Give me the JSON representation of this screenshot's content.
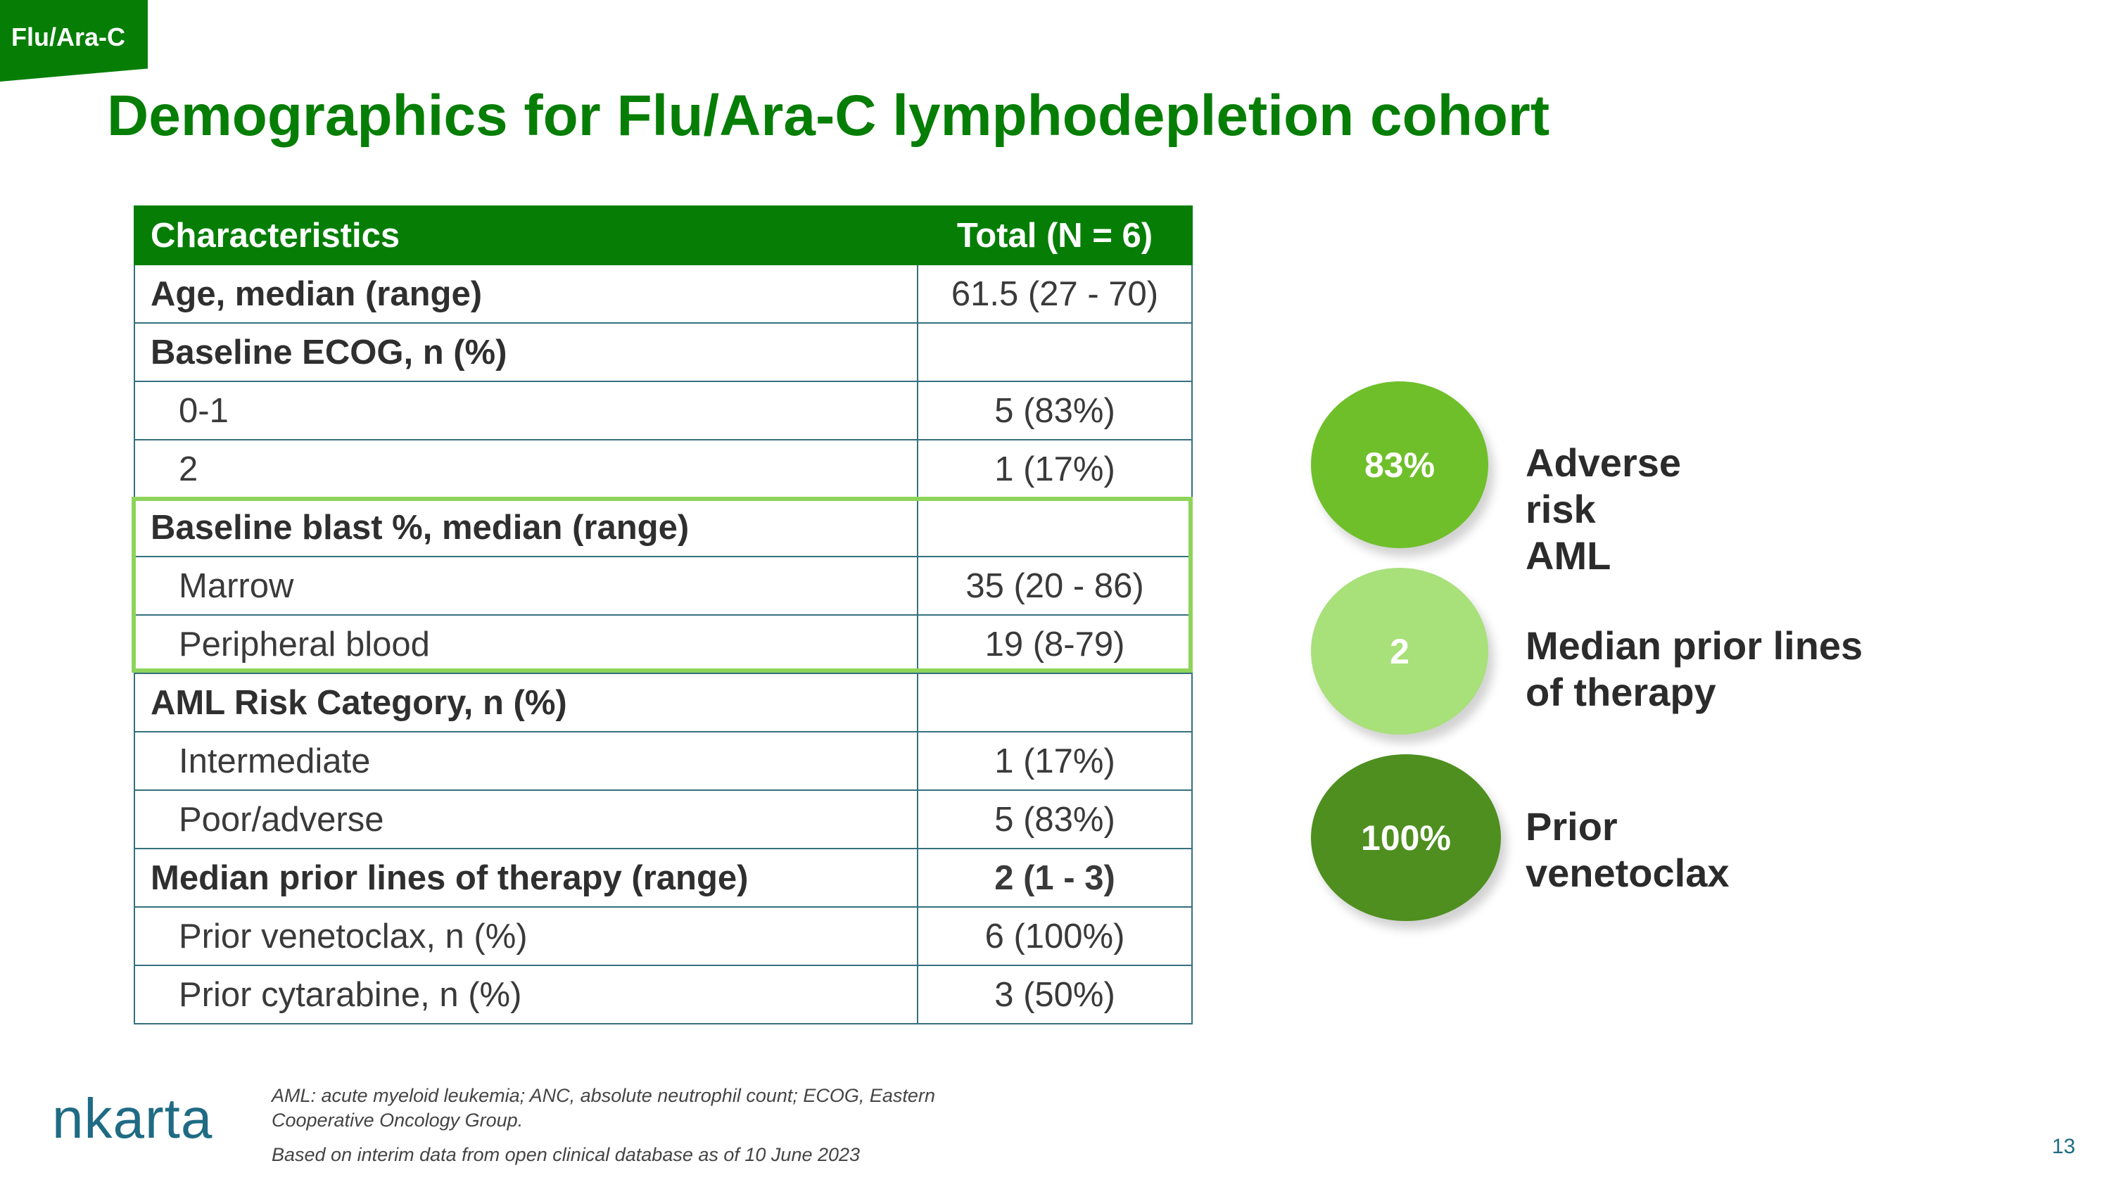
{
  "tag": "Flu/Ara-C",
  "title": "Demographics for Flu/Ara-C lymphodepletion cohort",
  "table": {
    "headers": [
      "Characteristics",
      "Total (N = 6)"
    ],
    "rows": [
      {
        "label": "Age, median (range)",
        "value": "61.5 (27 - 70)",
        "style": "heading"
      },
      {
        "label": "Baseline ECOG, n (%)",
        "value": "",
        "style": "heading"
      },
      {
        "label": "0-1",
        "value": "5 (83%)",
        "style": "sub"
      },
      {
        "label": "2",
        "value": "1 (17%)",
        "style": "sub"
      },
      {
        "label": "Baseline blast %, median (range)",
        "value": "",
        "style": "heading"
      },
      {
        "label": "Marrow",
        "value": "35 (20 - 86)",
        "style": "sub"
      },
      {
        "label": "Peripheral blood",
        "value": "19 (8-79)",
        "style": "sub"
      },
      {
        "label": "AML Risk Category, n (%)",
        "value": "",
        "style": "heading"
      },
      {
        "label": "Intermediate",
        "value": "1 (17%)",
        "style": "sub"
      },
      {
        "label": "Poor/adverse",
        "value": "5 (83%)",
        "style": "sub"
      },
      {
        "label": "Median prior lines of therapy (range)",
        "value": "2 (1 - 3)",
        "style": "heading bold"
      },
      {
        "label": "Prior venetoclax, n (%)",
        "value": "6 (100%)",
        "style": "sub"
      },
      {
        "label": "Prior cytarabine, n (%)",
        "value": "3 (50%)",
        "style": "sub"
      }
    ]
  },
  "stats": [
    {
      "value": "83%",
      "label": "Adverse risk AML",
      "color": "#6fbf2a"
    },
    {
      "value": "2",
      "label": "Median prior lines of therapy",
      "color": "#a8e07a"
    },
    {
      "value": "100%",
      "label": "Prior venetoclax",
      "color": "#4e8f1f"
    }
  ],
  "footnotes": {
    "abbreviations_line1": "AML: acute myeloid leukemia; ANC, absolute neutrophil count; ECOG, Eastern",
    "abbreviations_line2": "Cooperative Oncology Group.",
    "source": "Based on interim data from open clinical database as of 10 June 2023"
  },
  "logo": "nkarta",
  "page_number": "13"
}
